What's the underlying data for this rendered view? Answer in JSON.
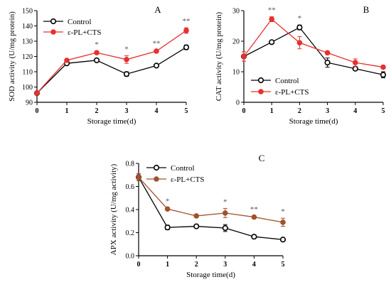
{
  "chart_data": [
    {
      "type": "line",
      "panel_label": "A",
      "xlabel": "Storage time(d)",
      "ylabel": "SOD activity (U/mg protein)",
      "x": [
        0,
        1,
        2,
        3,
        4,
        5
      ],
      "xlim": [
        0,
        5
      ],
      "ylim": [
        90,
        150
      ],
      "yticks": [
        90,
        100,
        110,
        120,
        130,
        140,
        150
      ],
      "series": [
        {
          "name": "Control",
          "color": "#000000",
          "marker": "open-circle",
          "values": [
            96,
            115.5,
            117.5,
            108.5,
            114,
            126
          ],
          "errors": [
            1,
            1,
            0.8,
            1.5,
            0.8,
            1.5
          ]
        },
        {
          "name": "ε-PL+CTS",
          "color": "#e8302e",
          "marker": "filled-circle",
          "values": [
            96,
            117.5,
            122.5,
            118,
            123.5,
            137
          ],
          "errors": [
            1,
            0.8,
            1,
            2.5,
            0.8,
            1.8
          ]
        }
      ],
      "significance": [
        {
          "x": 2,
          "label": "*"
        },
        {
          "x": 3,
          "label": "*"
        },
        {
          "x": 4,
          "label": "**"
        },
        {
          "x": 5,
          "label": "**"
        }
      ],
      "legend": "top-left"
    },
    {
      "type": "line",
      "panel_label": "B",
      "xlabel": "Storage time(d)",
      "ylabel": "CAT activity (U/mg protein)",
      "x": [
        0,
        1,
        2,
        3,
        4,
        5
      ],
      "xlim": [
        0,
        5
      ],
      "ylim": [
        0,
        30
      ],
      "yticks": [
        0,
        10,
        20,
        30
      ],
      "series": [
        {
          "name": "Control",
          "color": "#000000",
          "marker": "open-circle",
          "values": [
            15,
            19.7,
            24.5,
            13,
            11,
            9
          ],
          "errors": [
            1.5,
            0.5,
            0.8,
            1.5,
            0.5,
            1
          ]
        },
        {
          "name": "ε-PL+CTS",
          "color": "#e8302e",
          "marker": "filled-circle",
          "values": [
            15,
            27.2,
            19.5,
            16.2,
            13,
            11.5
          ],
          "errors": [
            1.5,
            0.8,
            2,
            0.5,
            1.2,
            0.5
          ]
        }
      ],
      "significance": [
        {
          "x": 1,
          "label": "**"
        },
        {
          "x": 2,
          "label": "*"
        }
      ],
      "legend": "center-left"
    },
    {
      "type": "line",
      "panel_label": "C",
      "xlabel": "Storage time(d)",
      "ylabel": "APX activity (U/mg activity)",
      "x": [
        0,
        1,
        2,
        3,
        4,
        5
      ],
      "xlim": [
        0,
        5
      ],
      "ylim": [
        0,
        0.8
      ],
      "yticks": [
        0.0,
        0.2,
        0.4,
        0.6,
        0.8
      ],
      "series": [
        {
          "name": "Control",
          "color": "#000000",
          "marker": "open-circle",
          "values": [
            0.68,
            0.245,
            0.255,
            0.24,
            0.165,
            0.14
          ],
          "errors": [
            0.03,
            0.02,
            0.01,
            0.03,
            0.01,
            0.01
          ]
        },
        {
          "name": "ε-PL+CTS",
          "color": "#a0522d",
          "marker": "filled-circle",
          "values": [
            0.68,
            0.405,
            0.345,
            0.37,
            0.335,
            0.29
          ],
          "errors": [
            0.03,
            0.01,
            0.01,
            0.04,
            0.01,
            0.035
          ]
        }
      ],
      "significance": [
        {
          "x": 1,
          "label": "*"
        },
        {
          "x": 3,
          "label": "*"
        },
        {
          "x": 4,
          "label": "**"
        },
        {
          "x": 5,
          "label": "*"
        }
      ],
      "legend": "top-right"
    }
  ]
}
